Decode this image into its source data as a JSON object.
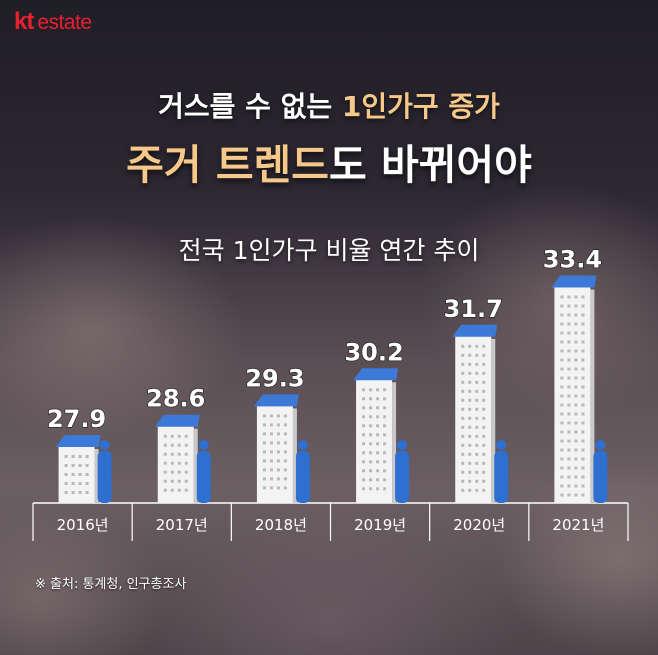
{
  "brand": {
    "kt": "kt",
    "estate": "estate"
  },
  "title": {
    "line1_prefix": "거스를 수 없는 ",
    "line1_highlight": "1인가구 증가",
    "line2_highlight": "주거 트렌드",
    "line2_suffix": "도 바뀌어야"
  },
  "chart_data": {
    "type": "bar",
    "title": "전국 1인가구 비율 연간 추이",
    "categories": [
      "2016년",
      "2017년",
      "2018년",
      "2019년",
      "2020년",
      "2021년"
    ],
    "values": [
      27.9,
      28.6,
      29.3,
      30.2,
      31.7,
      33.4
    ],
    "value_labels": [
      "27.9",
      "28.6",
      "29.3",
      "30.2",
      "31.7",
      "33.4"
    ],
    "grid": false,
    "legend": "none",
    "colors": {
      "building": "#f3f3f3",
      "roof": "#3d79d6",
      "person": "#2f6fd0",
      "value_text": "#ffffff",
      "axis": "#ffffff"
    }
  },
  "source_note": "※ 출처: 통계청, 인구총조사"
}
